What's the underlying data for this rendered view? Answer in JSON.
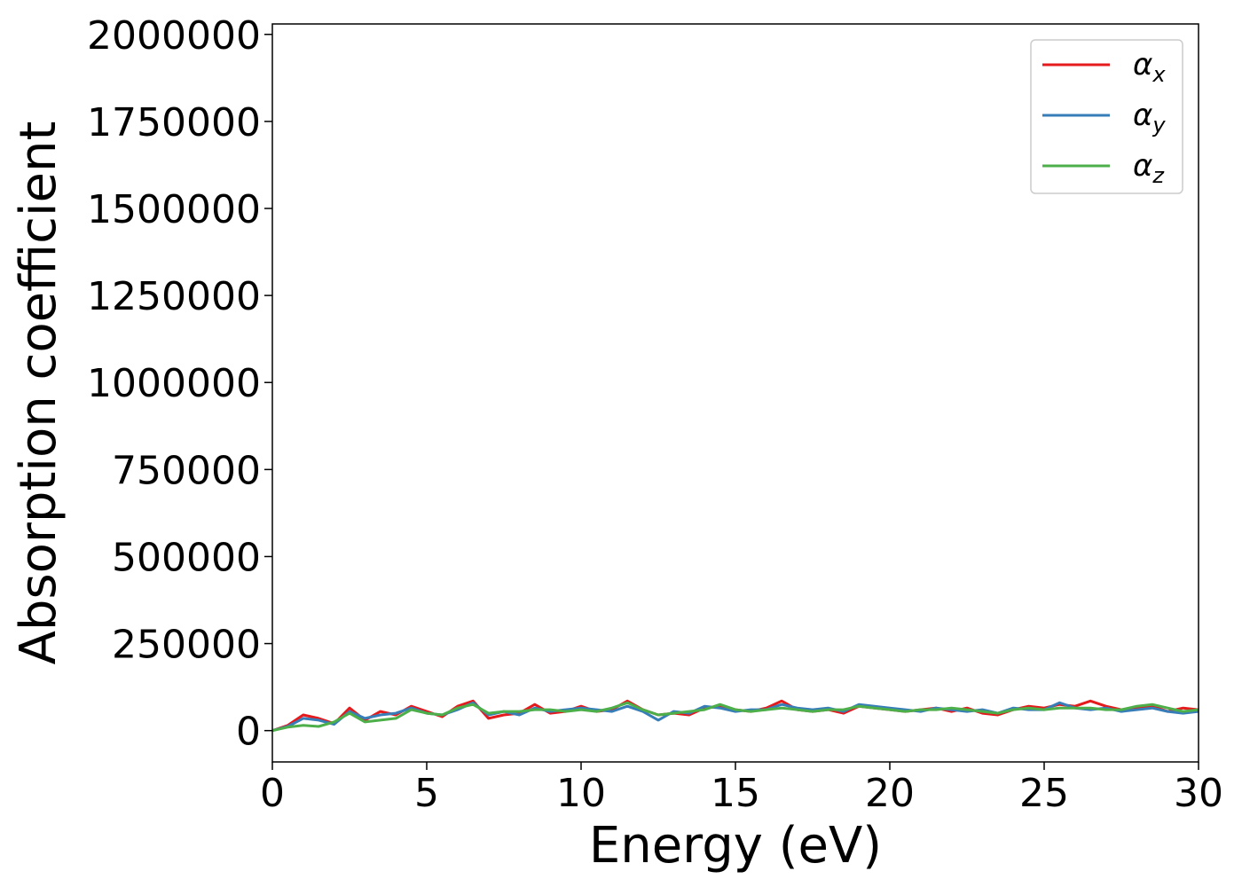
{
  "chart_data": {
    "type": "line",
    "xlabel": "Energy (eV)",
    "ylabel": "Absorption coefficient",
    "xlim": [
      0,
      30
    ],
    "ylim": [
      -90000,
      2030000
    ],
    "xticks": [
      0,
      5,
      10,
      15,
      20,
      25,
      30
    ],
    "xtick_labels": [
      "0",
      "5",
      "10",
      "15",
      "20",
      "25",
      "30"
    ],
    "yticks": [
      0,
      250000,
      500000,
      750000,
      1000000,
      1250000,
      1500000,
      1750000,
      2000000
    ],
    "ytick_labels": [
      "0",
      "250000",
      "500000",
      "750000",
      "1000000",
      "1250000",
      "1500000",
      "1750000",
      "2000000"
    ],
    "grid": false,
    "legend_position": "top-right",
    "x": [
      0,
      0.5,
      1,
      1.5,
      2,
      2.5,
      3,
      3.5,
      4,
      4.5,
      5,
      5.5,
      6,
      6.5,
      7,
      7.5,
      8,
      8.5,
      9,
      9.5,
      10,
      10.5,
      11,
      11.5,
      12,
      12.5,
      13,
      13.5,
      14,
      14.5,
      15,
      15.5,
      16,
      16.5,
      17,
      17.5,
      18,
      18.5,
      19,
      19.5,
      20,
      20.5,
      21,
      21.5,
      22,
      22.5,
      23,
      23.5,
      24,
      24.5,
      25,
      25.5,
      26,
      26.5,
      27,
      27.5,
      28,
      28.5,
      29,
      29.5,
      30
    ],
    "series": [
      {
        "name": "α",
        "subscript": "x",
        "color": "#e41a1c",
        "values": [
          0,
          15000,
          45000,
          35000,
          20000,
          65000,
          30000,
          55000,
          45000,
          70000,
          55000,
          40000,
          70000,
          85000,
          35000,
          45000,
          50000,
          75000,
          50000,
          55000,
          70000,
          55000,
          60000,
          85000,
          60000,
          45000,
          50000,
          45000,
          65000,
          70000,
          60000,
          55000,
          65000,
          85000,
          60000,
          55000,
          60000,
          50000,
          70000,
          65000,
          60000,
          55000,
          60000,
          65000,
          55000,
          65000,
          50000,
          45000,
          60000,
          70000,
          65000,
          75000,
          70000,
          85000,
          70000,
          60000,
          65000,
          70000,
          55000,
          65000,
          60000
        ]
      },
      {
        "name": "α",
        "subscript": "y",
        "color": "#377eb8",
        "values": [
          0,
          12000,
          35000,
          30000,
          18000,
          55000,
          35000,
          45000,
          50000,
          65000,
          50000,
          45000,
          60000,
          80000,
          45000,
          55000,
          45000,
          65000,
          55000,
          60000,
          65000,
          60000,
          55000,
          70000,
          55000,
          30000,
          55000,
          50000,
          70000,
          65000,
          55000,
          60000,
          60000,
          75000,
          65000,
          60000,
          65000,
          55000,
          75000,
          70000,
          65000,
          60000,
          55000,
          65000,
          60000,
          55000,
          60000,
          50000,
          65000,
          60000,
          60000,
          80000,
          65000,
          60000,
          65000,
          55000,
          60000,
          65000,
          55000,
          50000,
          55000
        ]
      },
      {
        "name": "α",
        "subscript": "z",
        "color": "#4daf4a",
        "values": [
          0,
          10000,
          15000,
          12000,
          25000,
          50000,
          25000,
          30000,
          35000,
          60000,
          50000,
          45000,
          65000,
          75000,
          50000,
          55000,
          55000,
          60000,
          60000,
          55000,
          60000,
          55000,
          65000,
          80000,
          60000,
          45000,
          50000,
          55000,
          60000,
          75000,
          60000,
          55000,
          60000,
          65000,
          60000,
          55000,
          60000,
          60000,
          70000,
          65000,
          60000,
          55000,
          60000,
          60000,
          65000,
          60000,
          55000,
          50000,
          60000,
          65000,
          60000,
          65000,
          65000,
          65000,
          60000,
          60000,
          70000,
          75000,
          65000,
          55000,
          60000
        ]
      }
    ]
  }
}
